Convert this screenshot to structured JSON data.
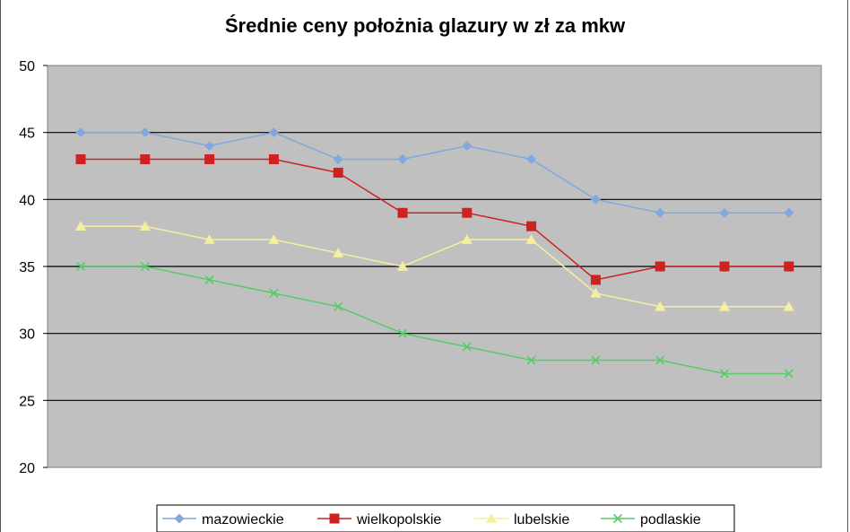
{
  "chart_data": {
    "type": "line",
    "title": "Średnie ceny położnia glazury w zł za mkw",
    "xlabel": "",
    "ylabel": "",
    "ylim": [
      20,
      50
    ],
    "yticks": [
      "50",
      "45",
      "40",
      "35",
      "30",
      "25",
      "20"
    ],
    "grid": true,
    "legend": "bottom",
    "x": [
      1,
      2,
      3,
      4,
      5,
      6,
      7,
      8,
      9,
      10,
      11,
      12
    ],
    "series": [
      {
        "name": "mazowieckie",
        "color": "#7fa8e0",
        "marker": "diamond",
        "values": [
          45,
          45,
          44,
          45,
          43,
          43,
          44,
          43,
          40,
          39,
          39,
          39
        ]
      },
      {
        "name": "wielkopolskie",
        "color": "#cc2222",
        "marker": "square",
        "values": [
          43,
          43,
          43,
          43,
          42,
          39,
          39,
          38,
          34,
          35,
          35,
          35
        ]
      },
      {
        "name": "lubelskie",
        "color": "#f5f0a0",
        "marker": "triangle",
        "values": [
          38,
          38,
          37,
          37,
          36,
          35,
          37,
          37,
          33,
          32,
          32,
          32
        ]
      },
      {
        "name": "podlaskie",
        "color": "#55cc66",
        "marker": "x",
        "values": [
          35,
          35,
          34,
          33,
          32,
          30,
          29,
          28,
          28,
          28,
          27,
          27
        ]
      }
    ]
  }
}
